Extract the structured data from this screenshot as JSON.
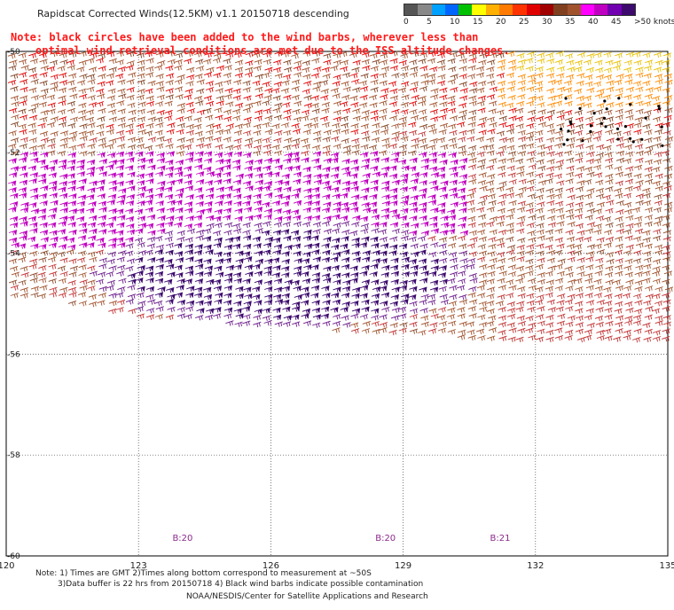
{
  "title": "Rapidscat Corrected Winds(12.5KM) v1.1 20150718 descending",
  "note": {
    "line1": "Note: black circles have been added to the wind barbs, wherever less than",
    "line2": "optimal wind retrieval conditions are met due to the ISS altitude changes."
  },
  "legend": {
    "ticks": [
      "0",
      "5",
      "10",
      "15",
      "20",
      "25",
      "30",
      "35",
      "40",
      "45",
      ">50 knots"
    ],
    "colors": [
      "#555555",
      "#888888",
      "#00a0ff",
      "#0066ff",
      "#00c000",
      "#ffff00",
      "#ffb000",
      "#ff7a00",
      "#ff3300",
      "#e00000",
      "#a00000",
      "#804020",
      "#a0522d",
      "#ff00ff",
      "#c000c0",
      "#7000b0",
      "#3d0a6e"
    ]
  },
  "map": {
    "lon_range": [
      120,
      135
    ],
    "lat_range": [
      -50,
      -60
    ],
    "x_ticks": [
      "120",
      "123",
      "126",
      "129",
      "132",
      "135"
    ],
    "y_ticks": [
      "-50",
      "-52",
      "-54",
      "-56",
      "-58",
      "-60"
    ],
    "time_labels": [
      {
        "text": "B:20",
        "lon": 124
      },
      {
        "text": "B:20",
        "lon": 128.6
      },
      {
        "text": "B:21",
        "lon": 131.2
      }
    ]
  },
  "footer": {
    "line1": "Note: 1) Times are GMT 2)Times along bottom correspond to measurement at ~50S",
    "line2": "3)Data buffer is 22 hrs from 20150718 4) Black wind barbs indicate possible contamination",
    "line3": "NOAA/NESDIS/Center for Satellite Applications and Research"
  }
}
